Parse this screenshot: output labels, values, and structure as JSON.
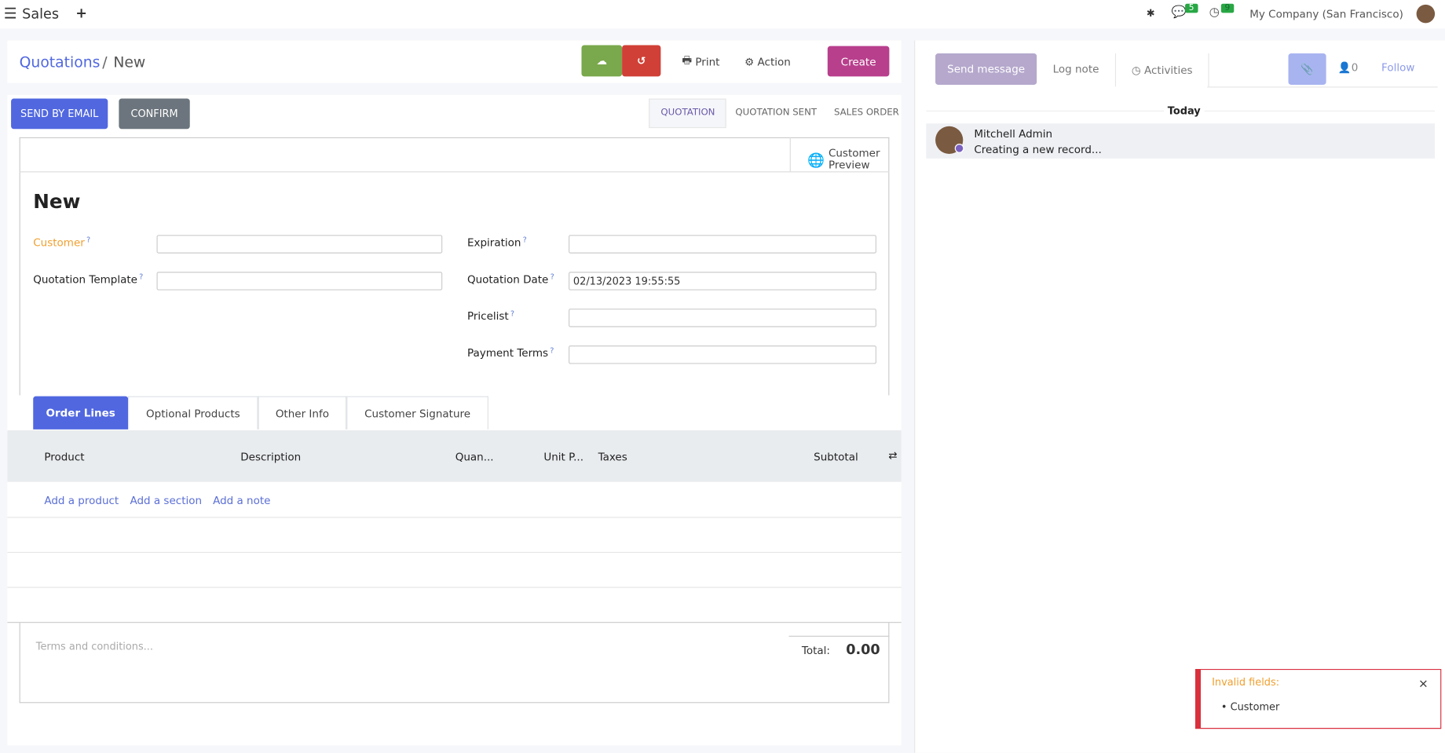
{
  "topbar": {
    "app": "Sales",
    "company": "My Company (San Francisco)",
    "messages_count": "5",
    "activities_count": "9"
  },
  "breadcrumb": {
    "parent": "Quotations",
    "current": "New"
  },
  "toolbar": {
    "print": "Print",
    "action": "Action",
    "create": "Create"
  },
  "statusbar": {
    "send_email": "SEND BY EMAIL",
    "confirm": "CONFIRM",
    "stages": [
      "QUOTATION",
      "QUOTATION SENT",
      "SALES ORDER"
    ],
    "active_stage": "QUOTATION"
  },
  "form": {
    "preview": "Customer Preview",
    "title": "New",
    "customer": "Customer",
    "quotation_template": "Quotation Template",
    "expiration": "Expiration",
    "quotation_date": "Quotation Date",
    "quotation_date_value": "02/13/2023 19:55:55",
    "pricelist": "Pricelist",
    "payment_terms": "Payment Terms",
    "help": "?"
  },
  "tabs": [
    "Order Lines",
    "Optional Products",
    "Other Info",
    "Customer Signature"
  ],
  "table": {
    "headers": [
      "Product",
      "Description",
      "Quan...",
      "Unit P...",
      "Taxes",
      "Subtotal"
    ],
    "links": [
      "Add a product",
      "Add a section",
      "Add a note"
    ]
  },
  "footer": {
    "terms_placeholder": "Terms and conditions...",
    "total_label": "Total:",
    "total_value": "0.00"
  },
  "chatter": {
    "send_message": "Send message",
    "log_note": "Log note",
    "activities": "Activities",
    "followers": "0",
    "follow": "Follow",
    "day": "Today",
    "author": "Mitchell Admin",
    "body": "Creating a new record..."
  },
  "toast": {
    "title": "Invalid fields:",
    "items": [
      "Customer"
    ]
  },
  "colors": {
    "primary": "#5067e0",
    "create": "#b83f8c",
    "save": "#7aa84c",
    "discard": "#d04036",
    "required": "#f0a030"
  }
}
